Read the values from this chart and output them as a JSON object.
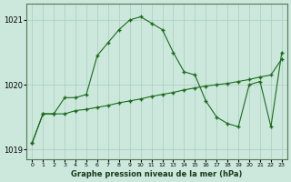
{
  "x": [
    0,
    1,
    2,
    3,
    4,
    5,
    6,
    7,
    8,
    9,
    10,
    11,
    12,
    13,
    14,
    15,
    16,
    17,
    18,
    19,
    20,
    21,
    22,
    23
  ],
  "line1": [
    1019.1,
    1019.55,
    1019.55,
    1019.8,
    1019.8,
    1019.85,
    1020.45,
    1020.65,
    1020.85,
    1021.0,
    1021.05,
    1020.95,
    1020.85,
    1020.5,
    1020.2,
    1020.15,
    1019.75,
    1019.5,
    1019.4,
    1019.35,
    1020.0,
    1020.05,
    1019.35,
    1020.5
  ],
  "line2": [
    1019.1,
    1019.55,
    1019.55,
    1019.55,
    1019.6,
    1019.62,
    1019.65,
    1019.68,
    1019.72,
    1019.75,
    1019.78,
    1019.82,
    1019.85,
    1019.88,
    1019.92,
    1019.95,
    1019.98,
    1020.0,
    1020.02,
    1020.05,
    1020.08,
    1020.12,
    1020.15,
    1020.4
  ],
  "bg_color": "#cce8dd",
  "grid_color_major": "#aaccbb",
  "grid_color_minor": "#bbddcc",
  "line_color": "#1a6b1a",
  "marker": "+",
  "ylim_min": 1018.85,
  "ylim_max": 1021.25,
  "yticks": [
    1019,
    1020,
    1021
  ],
  "xlabel": "Graphe pression niveau de la mer (hPa)"
}
